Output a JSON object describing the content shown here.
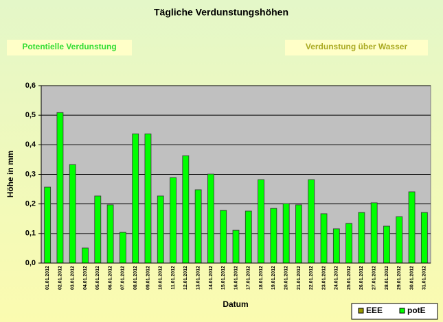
{
  "chart_data": {
    "type": "bar",
    "title": "Tägliche Verdunstungshöhen",
    "buttons": [
      "Potentielle Verdunstung",
      "Verdunstung über Wasser"
    ],
    "x_label": "Datum",
    "y_label": "Höhe in mm",
    "categories": [
      "01.01.2012",
      "02.01.2012",
      "03.01.2012",
      "04.01.2012",
      "05.01.2012",
      "06.01.2012",
      "07.01.2012",
      "08.01.2012",
      "09.01.2012",
      "10.01.2012",
      "11.01.2012",
      "12.01.2012",
      "13.01.2012",
      "14.01.2012",
      "15.01.2012",
      "16.01.2012",
      "17.01.2012",
      "18.01.2012",
      "19.01.2012",
      "20.01.2012",
      "21.01.2012",
      "22.01.2012",
      "23.01.2012",
      "24.01.2012",
      "25.01.2012",
      "26.01.2012",
      "27.01.2012",
      "28.01.2012",
      "29.01.2012",
      "30.01.2012",
      "31.01.2012"
    ],
    "series": [
      {
        "name": "EEE",
        "color": "#999900",
        "values": [
          null,
          null,
          null,
          null,
          null,
          null,
          null,
          null,
          null,
          null,
          null,
          null,
          null,
          null,
          null,
          null,
          null,
          null,
          null,
          null,
          null,
          null,
          null,
          null,
          null,
          null,
          null,
          null,
          null,
          null,
          null
        ]
      },
      {
        "name": "potE",
        "color": "#00ff00",
        "values": [
          0.257,
          0.509,
          0.333,
          0.051,
          0.227,
          0.197,
          0.104,
          0.437,
          0.437,
          0.227,
          0.289,
          0.363,
          0.248,
          0.301,
          0.178,
          0.111,
          0.176,
          0.282,
          0.185,
          0.201,
          0.197,
          0.282,
          0.167,
          0.116,
          0.134,
          0.171,
          0.204,
          0.125,
          0.157,
          0.241,
          0.171
        ]
      }
    ],
    "ylim": [
      0,
      0.6
    ],
    "yticks": [
      {
        "value": 0,
        "label": "0,0"
      },
      {
        "value": 0.1,
        "label": "0,1"
      },
      {
        "value": 0.2,
        "label": "0,2"
      },
      {
        "value": 0.3,
        "label": "0,3"
      },
      {
        "value": 0.4,
        "label": "0,4"
      },
      {
        "value": 0.5,
        "label": "0,5"
      },
      {
        "value": 0.6,
        "label": "0,6"
      }
    ],
    "grid": true,
    "legend": "bottom-right"
  }
}
